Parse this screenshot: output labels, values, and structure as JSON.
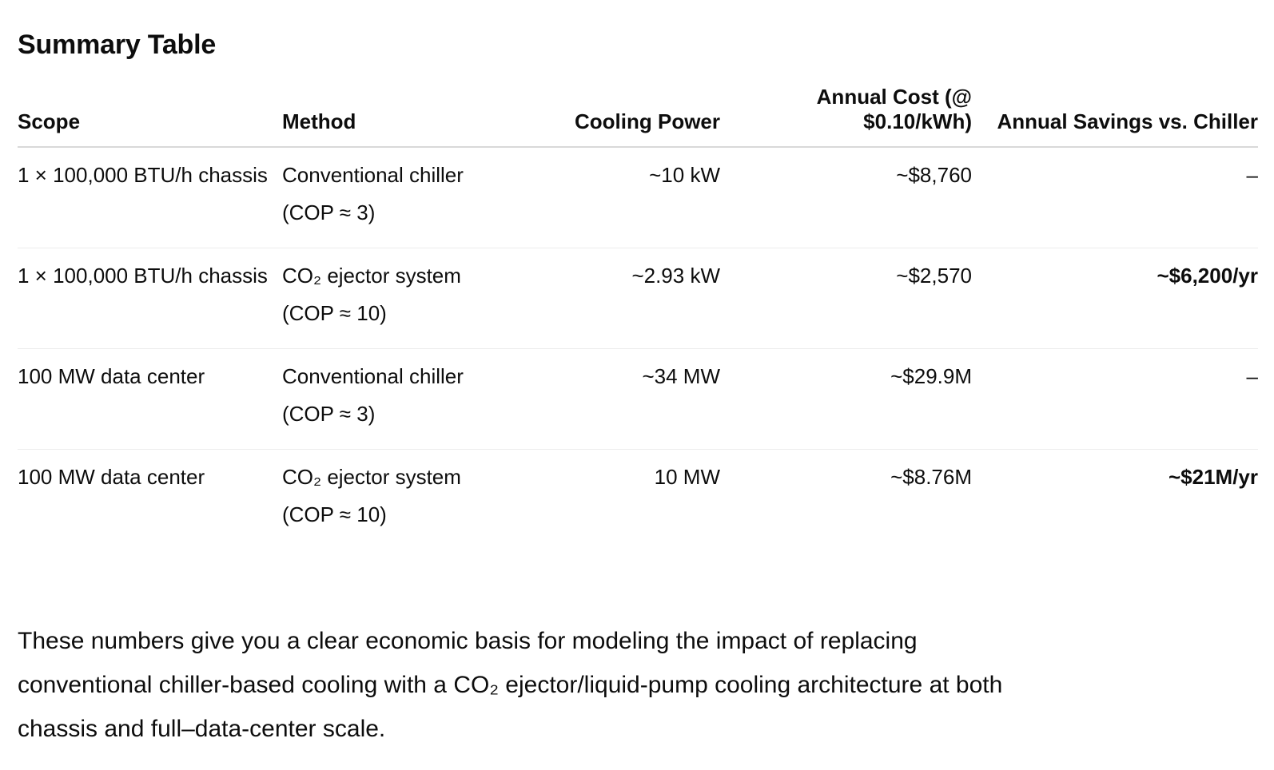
{
  "title": "Summary Table",
  "table": {
    "headers": {
      "scope": "Scope",
      "method": "Method",
      "cooling_power": "Cooling Power",
      "annual_cost": "Annual Cost (@ $0.10/kWh)",
      "annual_savings": "Annual Savings vs. Chiller"
    },
    "rows": [
      {
        "scope": "1 × 100,000 BTU/h chassis",
        "method": "Conventional chiller (COP ≈ 3)",
        "cooling_power": "~10 kW",
        "annual_cost": "~$8,760",
        "annual_savings": "–"
      },
      {
        "scope": "1 × 100,000 BTU/h chassis",
        "method": "CO₂ ejector system (COP ≈ 10)",
        "cooling_power": "~2.93 kW",
        "annual_cost": "~$2,570",
        "annual_savings": "~$6,200/yr"
      },
      {
        "scope": "100 MW data center",
        "method": "Conventional chiller (COP ≈ 3)",
        "cooling_power": "~34 MW",
        "annual_cost": "~$29.9M",
        "annual_savings": "–"
      },
      {
        "scope": "100 MW data center",
        "method": "CO₂ ejector system (COP ≈ 10)",
        "cooling_power": "10 MW",
        "annual_cost": "~$8.76M",
        "annual_savings": "~$21M/yr"
      }
    ]
  },
  "conclusion": "These numbers give you a clear economic basis for modeling the impact of replacing conventional chiller-based cooling with a CO₂ ejector/liquid-pump cooling architecture at both chassis and full–data-center scale."
}
